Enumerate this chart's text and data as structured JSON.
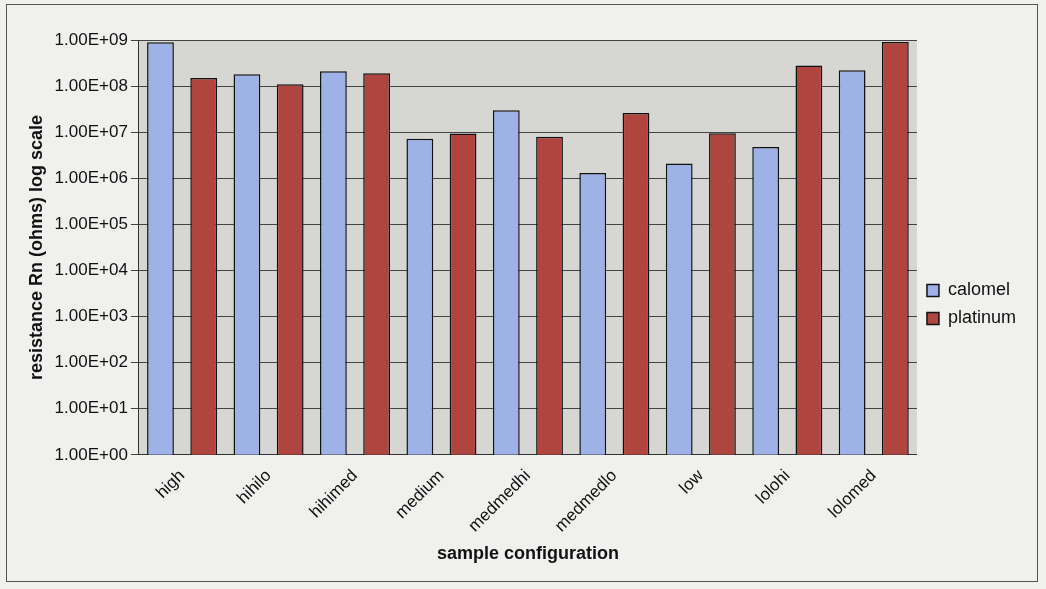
{
  "chart_data": {
    "type": "bar",
    "xlabel": "sample configuration",
    "ylabel": "resistance Rn (ohms) log scale",
    "categories": [
      "high",
      "hihilo",
      "hihimed",
      "medium",
      "medmedhi",
      "medmedlo",
      "low",
      "lolohi",
      "lolomed"
    ],
    "series": [
      {
        "name": "calomel",
        "color": "#9fb2e8",
        "values": [
          890000000,
          180000000,
          210000000,
          7200000,
          30000000,
          1300000,
          2100000,
          4800000,
          220000000
        ]
      },
      {
        "name": "platinum",
        "color": "#b0443f",
        "values": [
          150000000,
          110000000,
          190000000,
          9400000,
          8000000,
          26000000,
          9500000,
          280000000,
          900000000
        ]
      }
    ],
    "log": true,
    "ylim": [
      1,
      1000000000
    ],
    "yticks": [
      {
        "value": 1,
        "label": "1.00E+00"
      },
      {
        "value": 10,
        "label": "1.00E+01"
      },
      {
        "value": 100,
        "label": "1.00E+02"
      },
      {
        "value": 1000,
        "label": "1.00E+03"
      },
      {
        "value": 10000,
        "label": "1.00E+04"
      },
      {
        "value": 100000,
        "label": "1.00E+05"
      },
      {
        "value": 1000000,
        "label": "1.00E+06"
      },
      {
        "value": 10000000,
        "label": "1.00E+07"
      },
      {
        "value": 100000000,
        "label": "1.00E+08"
      },
      {
        "value": 1000000000,
        "label": "1.00E+09"
      }
    ],
    "grid": "y",
    "legend": "right"
  }
}
